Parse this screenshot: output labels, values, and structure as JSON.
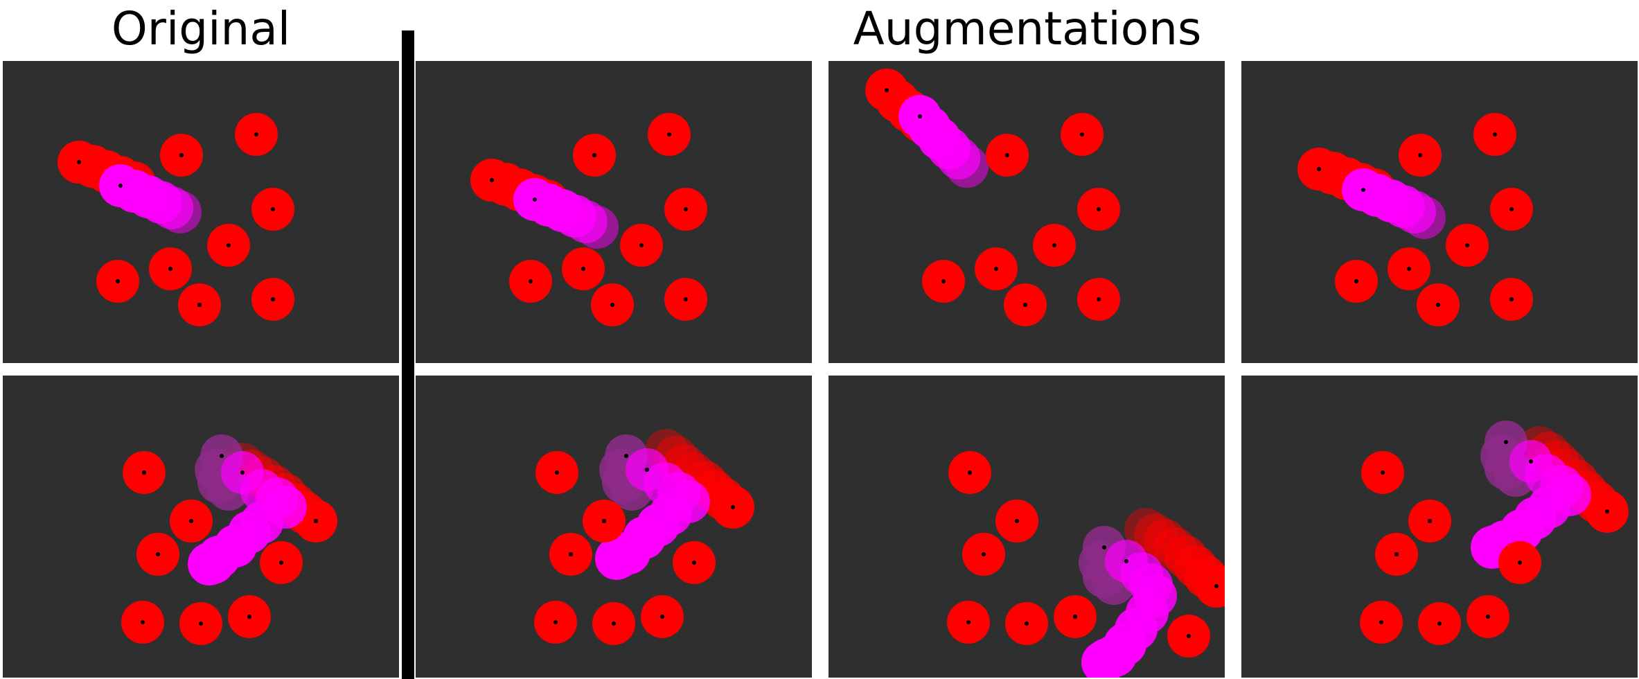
{
  "headings": {
    "original": "Original",
    "augmentations": "Augmentations"
  },
  "colors": {
    "background": "#ffffff",
    "panel": "#2f2f2f",
    "divider": "#000000",
    "static_disc": "#ff0000",
    "trail_red": "#ff0000",
    "trail_magenta": "#ff00ff",
    "trail_purple": "#8e2b8a",
    "dot": "#000000"
  },
  "panels": [
    {
      "name": "panel-original-top",
      "group": "original"
    },
    {
      "name": "panel-augmentation-1-top",
      "group": "augmentations"
    },
    {
      "name": "panel-augmentation-2-top",
      "group": "augmentations"
    },
    {
      "name": "panel-augmentation-3-top",
      "group": "augmentations"
    },
    {
      "name": "panel-original-bottom",
      "group": "original"
    },
    {
      "name": "panel-augmentation-1-bottom",
      "group": "augmentations"
    },
    {
      "name": "panel-augmentation-2-bottom",
      "group": "augmentations"
    },
    {
      "name": "panel-augmentation-3-bottom",
      "group": "augmentations"
    }
  ]
}
